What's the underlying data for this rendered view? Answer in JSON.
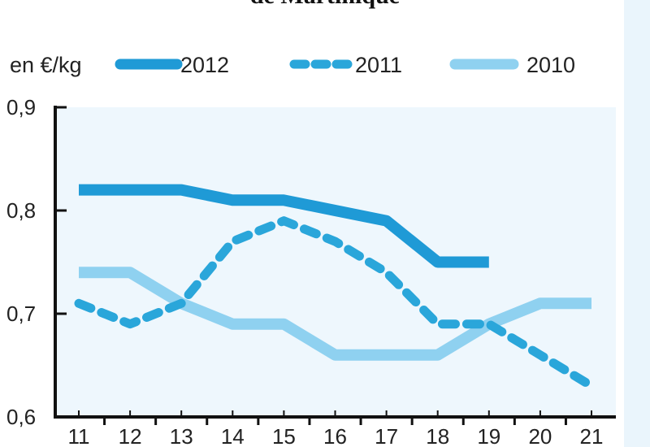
{
  "chart_data": {
    "type": "line",
    "title": "de Martinique",
    "ylabel": "en €/kg",
    "xlabel": "",
    "categories": [
      "11",
      "12",
      "13",
      "14",
      "15",
      "16",
      "17",
      "18",
      "19",
      "20",
      "21"
    ],
    "ylim": [
      0.6,
      0.9
    ],
    "yticks": [
      "0,6",
      "0,7",
      "0,8",
      "0,9"
    ],
    "legend_position": "top",
    "series": [
      {
        "name": "2012",
        "color": "#1f9ad6",
        "style": "solid",
        "values": [
          0.82,
          0.82,
          0.82,
          0.81,
          0.81,
          0.8,
          0.79,
          0.75,
          0.75,
          null,
          null
        ]
      },
      {
        "name": "2011",
        "color": "#2aa6da",
        "style": "dashed",
        "values": [
          0.71,
          0.69,
          0.71,
          0.77,
          0.79,
          0.77,
          0.74,
          0.69,
          0.69,
          0.66,
          0.63
        ]
      },
      {
        "name": "2010",
        "color": "#8fd1f0",
        "style": "solid",
        "values": [
          0.74,
          0.74,
          0.71,
          0.69,
          0.69,
          0.66,
          0.66,
          0.66,
          0.69,
          0.71,
          0.71
        ]
      }
    ]
  }
}
